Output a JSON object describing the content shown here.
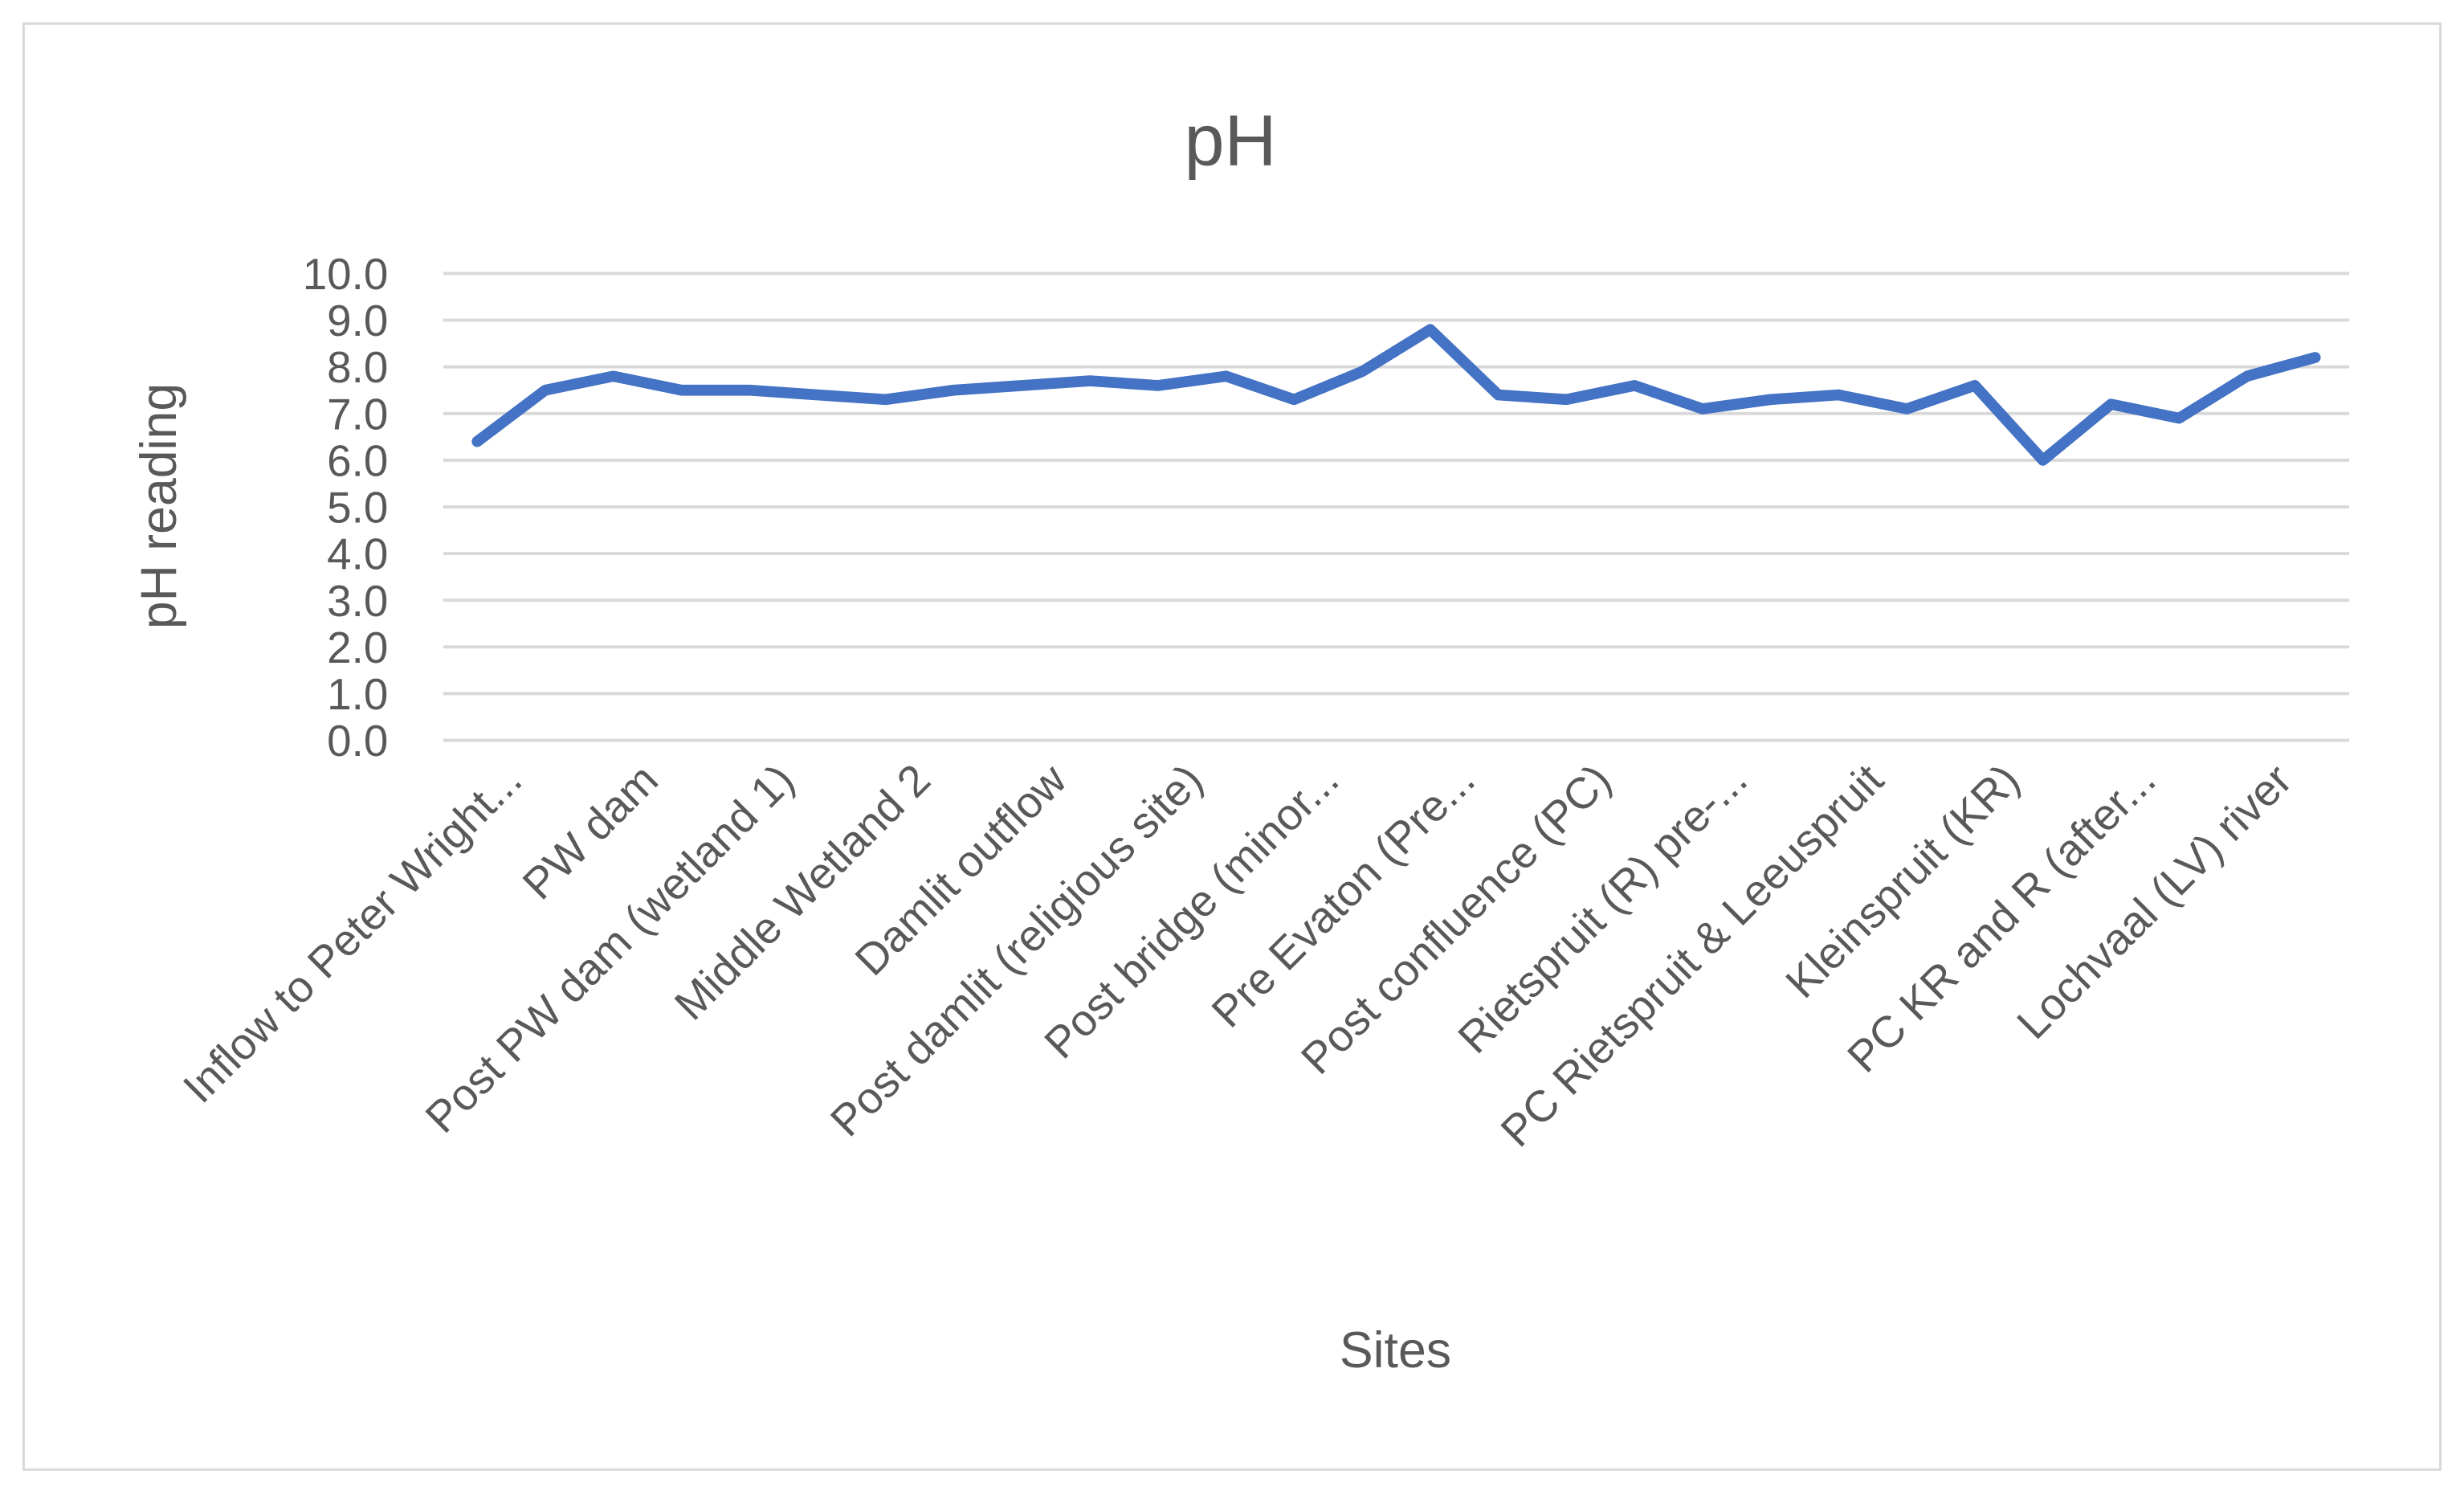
{
  "chart_data": {
    "type": "line",
    "title": "pH",
    "x_label": "Sites",
    "y_label": "pH reading",
    "categories": [
      "Inflow to Peter Wright...",
      null,
      "PW dam",
      null,
      "Post PW dam (wetland 1)",
      null,
      "Middle Wetland 2",
      null,
      "Damlit outflow",
      null,
      "Post damlit (religious site)",
      null,
      "Post bridge (minor...",
      null,
      "Pre Evaton (Pre...",
      null,
      "Post confluence (PC)",
      null,
      "Rietspruit (R) pre-...",
      null,
      "PC Rietspruit & Leeuspruit",
      null,
      "Kleinspruit (KR)",
      null,
      "PC KR and R (after...",
      null,
      "Lochvaal (LV) river",
      null
    ],
    "series": [
      {
        "name": "pH",
        "color": "#4472c4",
        "values": [
          6.4,
          7.5,
          7.8,
          7.5,
          7.5,
          7.4,
          7.3,
          7.5,
          7.6,
          7.7,
          7.6,
          7.8,
          7.3,
          7.9,
          8.8,
          7.4,
          7.3,
          7.6,
          7.1,
          7.3,
          7.4,
          7.1,
          7.6,
          6.0,
          7.2,
          6.9,
          7.8,
          8.2
        ]
      }
    ],
    "ylim": [
      0,
      10
    ],
    "yticks": [
      {
        "value": 0,
        "label": "0.0"
      },
      {
        "value": 1,
        "label": "1.0"
      },
      {
        "value": 2,
        "label": "2.0"
      },
      {
        "value": 3,
        "label": "3.0"
      },
      {
        "value": 4,
        "label": "4.0"
      },
      {
        "value": 5,
        "label": "5.0"
      },
      {
        "value": 6,
        "label": "6.0"
      },
      {
        "value": 7,
        "label": "7.0"
      },
      {
        "value": 8,
        "label": "8.0"
      },
      {
        "value": 9,
        "label": "9.0"
      },
      {
        "value": 10,
        "label": "10.0"
      }
    ],
    "grid": true
  }
}
